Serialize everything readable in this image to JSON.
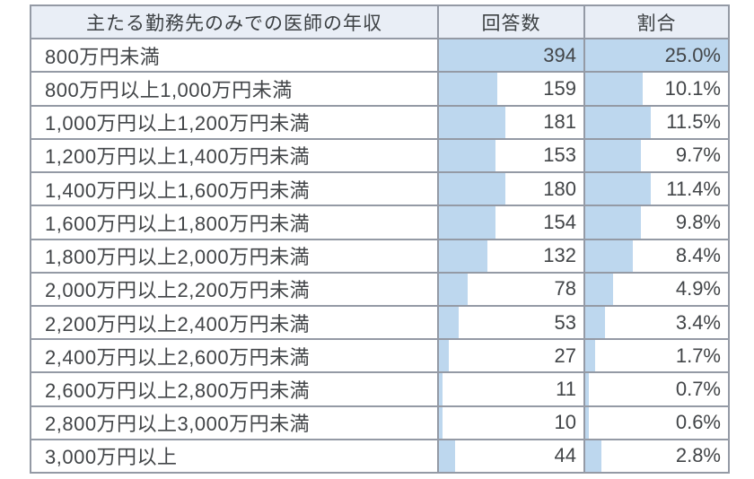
{
  "table": {
    "headers": {
      "income": "主たる勤務先のみでの医師の年収",
      "count": "回答数",
      "ratio": "割合"
    },
    "rows": [
      {
        "label": "800万円未満",
        "count": 394,
        "ratio": "25.0%"
      },
      {
        "label": "800万円以上1,000万円未満",
        "count": 159,
        "ratio": "10.1%"
      },
      {
        "label": "1,000万円以上1,200万円未満",
        "count": 181,
        "ratio": "11.5%"
      },
      {
        "label": "1,200万円以上1,400万円未満",
        "count": 153,
        "ratio": "9.7%"
      },
      {
        "label": "1,400万円以上1,600万円未満",
        "count": 180,
        "ratio": "11.4%"
      },
      {
        "label": "1,600万円以上1,800万円未満",
        "count": 154,
        "ratio": "9.8%"
      },
      {
        "label": "1,800万円以上2,000万円未満",
        "count": 132,
        "ratio": "8.4%"
      },
      {
        "label": "2,000万円以上2,200万円未満",
        "count": 78,
        "ratio": "4.9%"
      },
      {
        "label": "2,200万円以上2,400万円未満",
        "count": 53,
        "ratio": "3.4%"
      },
      {
        "label": "2,400万円以上2,600万円未満",
        "count": 27,
        "ratio": "1.7%"
      },
      {
        "label": "2,600万円以上2,800万円未満",
        "count": 11,
        "ratio": "0.7%"
      },
      {
        "label": "2,800万円以上3,000万円未満",
        "count": 10,
        "ratio": "0.6%"
      },
      {
        "label": "3,000万円以上",
        "count": 44,
        "ratio": "2.8%"
      }
    ]
  },
  "colors": {
    "bar": "#bdd7ee",
    "header_bg": "#e9eef6",
    "border": "#949aa5",
    "text": "#424548"
  },
  "chart_data": {
    "type": "table",
    "title": "主たる勤務先のみでの医師の年収",
    "columns": [
      "主たる勤務先のみでの医師の年収",
      "回答数",
      "割合"
    ],
    "categories": [
      "800万円未満",
      "800万円以上1,000万円未満",
      "1,000万円以上1,200万円未満",
      "1,200万円以上1,400万円未満",
      "1,400万円以上1,600万円未満",
      "1,600万円以上1,800万円未満",
      "1,800万円以上2,000万円未満",
      "2,000万円以上2,200万円未満",
      "2,200万円以上2,400万円未満",
      "2,400万円以上2,600万円未満",
      "2,600万円以上2,800万円未満",
      "2,800万円以上3,000万円未満",
      "3,000万円以上"
    ],
    "series": [
      {
        "name": "回答数",
        "values": [
          394,
          159,
          181,
          153,
          180,
          154,
          132,
          78,
          53,
          27,
          11,
          10,
          44
        ]
      },
      {
        "name": "割合(%)",
        "values": [
          25.0,
          10.1,
          11.5,
          9.7,
          11.4,
          9.8,
          8.4,
          4.9,
          3.4,
          1.7,
          0.7,
          0.6,
          2.8
        ]
      }
    ],
    "layout": {
      "data_bars": "proportional to max value, left-anchored, light blue"
    }
  }
}
